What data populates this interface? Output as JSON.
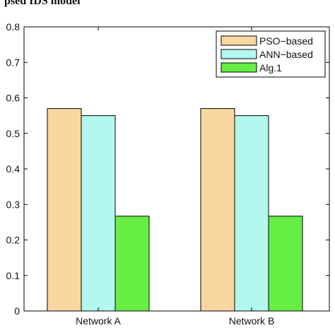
{
  "caption_fragment": "psed IDS model",
  "chart_data": {
    "type": "bar",
    "categories": [
      "Network A",
      "Network B"
    ],
    "series": [
      {
        "name": "PSO−based",
        "values": [
          0.57,
          0.57
        ],
        "color": "#FAD7A0"
      },
      {
        "name": "ANN−based",
        "values": [
          0.55,
          0.55
        ],
        "color": "#B3F8EE"
      },
      {
        "name": "Alg.1",
        "values": [
          0.267,
          0.267
        ],
        "color": "#66EE44"
      }
    ],
    "ylim": [
      0,
      0.8
    ],
    "yticks": [
      "0",
      "0.1",
      "0.2",
      "0.3",
      "0.4",
      "0.5",
      "0.6",
      "0.7",
      "0.8"
    ],
    "yticks_values": [
      0,
      0.1,
      0.2,
      0.3,
      0.4,
      0.5,
      0.6,
      0.7,
      0.8
    ],
    "legend_position": "top-right",
    "grid": false
  }
}
